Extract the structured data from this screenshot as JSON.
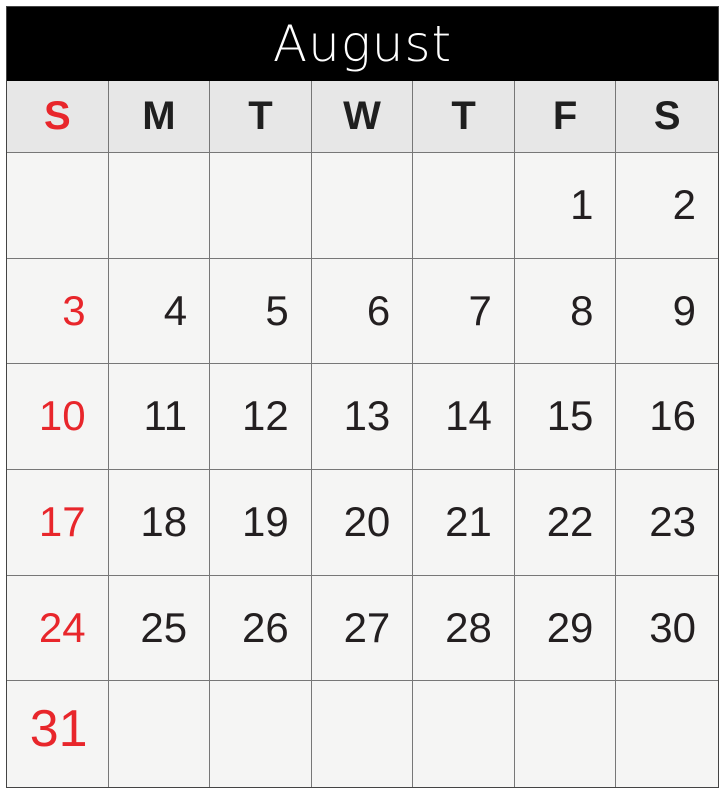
{
  "month": "August",
  "weekdays": [
    "S",
    "M",
    "T",
    "W",
    "T",
    "F",
    "S"
  ],
  "weeks": [
    [
      "",
      "",
      "",
      "",
      "",
      "1",
      "2"
    ],
    [
      "3",
      "4",
      "5",
      "6",
      "7",
      "8",
      "9"
    ],
    [
      "10",
      "11",
      "12",
      "13",
      "14",
      "15",
      "16"
    ],
    [
      "17",
      "18",
      "19",
      "20",
      "21",
      "22",
      "23"
    ],
    [
      "24",
      "25",
      "26",
      "27",
      "28",
      "29",
      "30"
    ],
    [
      "31",
      "",
      "",
      "",
      "",
      "",
      ""
    ]
  ],
  "colors": {
    "header_bg": "#000000",
    "header_text": "#ffffff",
    "weekday_bg": "#e7e7e7",
    "cell_bg": "#f5f5f4",
    "sunday": "#e8262b",
    "text": "#231f20",
    "grid_line": "#777777"
  }
}
